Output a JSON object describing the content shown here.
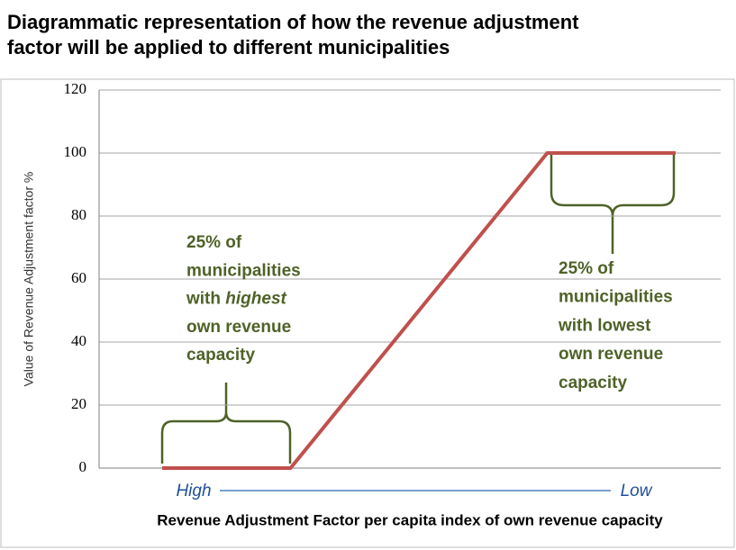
{
  "chart_data": {
    "type": "line",
    "title": [
      "Diagrammatic representation of how the revenue adjustment",
      "factor will be applied to different municipalities"
    ],
    "y_label": "Value of Revenue Adjustment factor %",
    "x_label": "Revenue Adjustment Factor  per capita index of own revenue capacity",
    "x_start_label": "High",
    "x_end_label": "Low",
    "x": [
      0,
      25,
      75,
      100
    ],
    "xlim": [
      0,
      100
    ],
    "series": [
      {
        "color": "#c0504d",
        "values": [
          0,
          0,
          100,
          100
        ]
      }
    ],
    "ylim": [
      0,
      120
    ],
    "yticks": [
      0,
      20,
      40,
      60,
      80,
      100,
      120
    ],
    "grid": true,
    "annotations": [
      {
        "lines": [
          "25% of",
          "municipalities",
          [
            "with",
            "highest"
          ],
          "own revenue",
          "capacity"
        ]
      },
      {
        "lines": [
          "25% of",
          "municipalities",
          "with lowest",
          "own revenue",
          "capacity"
        ]
      }
    ]
  }
}
